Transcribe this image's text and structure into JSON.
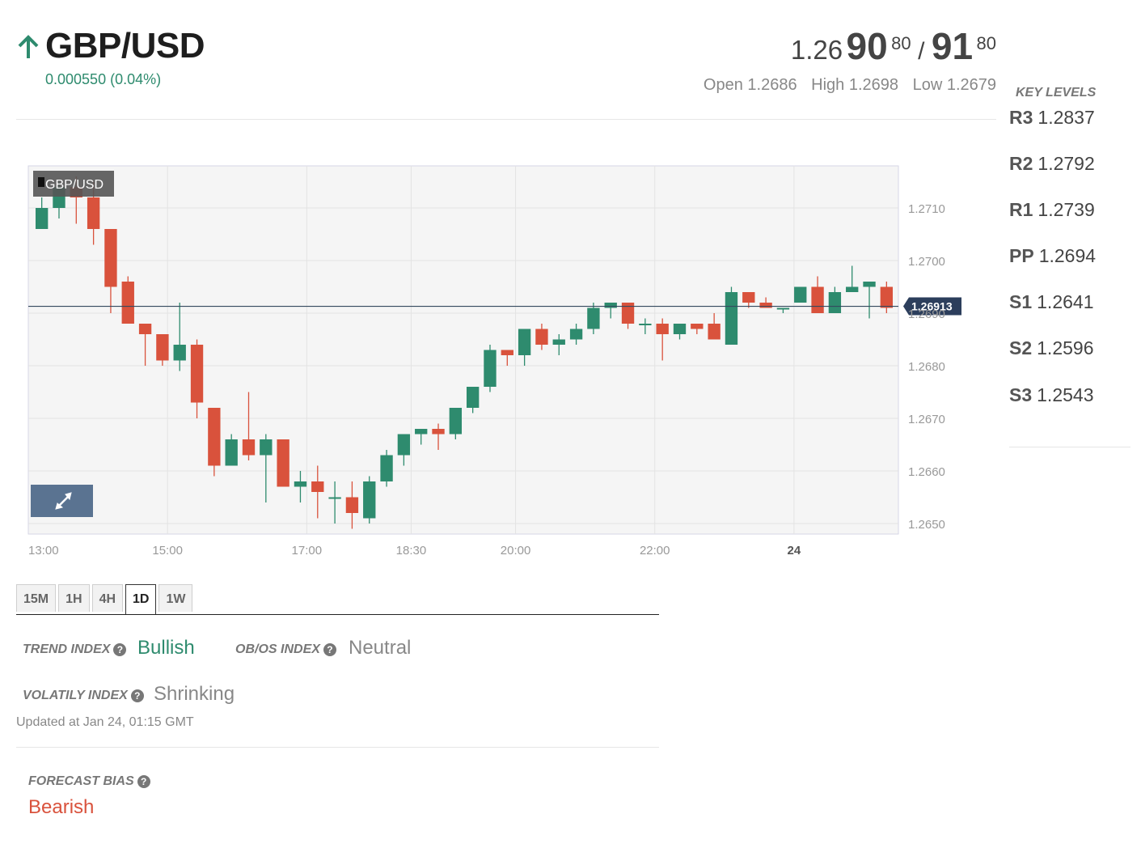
{
  "header": {
    "pair": "GBP/USD",
    "direction_icon": "arrow-up-icon",
    "change": "0.000550 (0.04%)",
    "quote": {
      "bid_base": "1.26",
      "bid_big": "90",
      "bid_pip": "80",
      "slash": "/",
      "ask_big": "91",
      "ask_pip": "80"
    },
    "open": "Open 1.2686",
    "high": "High 1.2698",
    "low": "Low 1.2679"
  },
  "key_levels": {
    "title": "KEY LEVELS",
    "items": [
      {
        "name": "R3",
        "value": "1.2837"
      },
      {
        "name": "R2",
        "value": "1.2792"
      },
      {
        "name": "R1",
        "value": "1.2739"
      },
      {
        "name": "PP",
        "value": "1.2694"
      },
      {
        "name": "S1",
        "value": "1.2641"
      },
      {
        "name": "S2",
        "value": "1.2596"
      },
      {
        "name": "S3",
        "value": "1.2543"
      }
    ]
  },
  "chart_data": {
    "type": "candlestick",
    "title": "GBP/USD",
    "current_price": 1.26913,
    "current_price_label": "1.26913",
    "ylim": [
      1.2648,
      1.2718
    ],
    "y_ticks": [
      "1.2710",
      "1.2700",
      "1.2690",
      "1.2680",
      "1.2670",
      "1.2660",
      "1.2650"
    ],
    "x_ticks": [
      "13:00",
      "15:00",
      "17:00",
      "18:30",
      "20:00",
      "22:00",
      "24"
    ],
    "up_color": "#2e8b6e",
    "down_color": "#d9523c",
    "candles": [
      {
        "o": 1.2706,
        "h": 1.2712,
        "l": 1.2706,
        "c": 1.271
      },
      {
        "o": 1.271,
        "h": 1.2715,
        "l": 1.2708,
        "c": 1.2714
      },
      {
        "o": 1.2714,
        "h": 1.2716,
        "l": 1.2707,
        "c": 1.2712
      },
      {
        "o": 1.2712,
        "h": 1.2715,
        "l": 1.2703,
        "c": 1.2706
      },
      {
        "o": 1.2706,
        "h": 1.2706,
        "l": 1.269,
        "c": 1.2695
      },
      {
        "o": 1.2696,
        "h": 1.2697,
        "l": 1.2688,
        "c": 1.2688
      },
      {
        "o": 1.2688,
        "h": 1.2688,
        "l": 1.268,
        "c": 1.2686
      },
      {
        "o": 1.2686,
        "h": 1.2686,
        "l": 1.268,
        "c": 1.2681
      },
      {
        "o": 1.2681,
        "h": 1.2692,
        "l": 1.2679,
        "c": 1.2684
      },
      {
        "o": 1.2684,
        "h": 1.2685,
        "l": 1.267,
        "c": 1.2673
      },
      {
        "o": 1.2672,
        "h": 1.2672,
        "l": 1.2659,
        "c": 1.2661
      },
      {
        "o": 1.2661,
        "h": 1.2667,
        "l": 1.2661,
        "c": 1.2666
      },
      {
        "o": 1.2666,
        "h": 1.2675,
        "l": 1.2662,
        "c": 1.2663
      },
      {
        "o": 1.2663,
        "h": 1.2667,
        "l": 1.2654,
        "c": 1.2666
      },
      {
        "o": 1.2666,
        "h": 1.2666,
        "l": 1.2657,
        "c": 1.2657
      },
      {
        "o": 1.2657,
        "h": 1.266,
        "l": 1.2654,
        "c": 1.2658
      },
      {
        "o": 1.2658,
        "h": 1.2661,
        "l": 1.2651,
        "c": 1.2656
      },
      {
        "o": 1.2655,
        "h": 1.2658,
        "l": 1.265,
        "c": 1.2655
      },
      {
        "o": 1.2655,
        "h": 1.2658,
        "l": 1.2649,
        "c": 1.2652
      },
      {
        "o": 1.2651,
        "h": 1.2659,
        "l": 1.265,
        "c": 1.2658
      },
      {
        "o": 1.2658,
        "h": 1.2664,
        "l": 1.2657,
        "c": 1.2663
      },
      {
        "o": 1.2663,
        "h": 1.2667,
        "l": 1.2661,
        "c": 1.2667
      },
      {
        "o": 1.2667,
        "h": 1.2668,
        "l": 1.2665,
        "c": 1.2668
      },
      {
        "o": 1.2668,
        "h": 1.2669,
        "l": 1.2664,
        "c": 1.2667
      },
      {
        "o": 1.2667,
        "h": 1.2672,
        "l": 1.2666,
        "c": 1.2672
      },
      {
        "o": 1.2672,
        "h": 1.2676,
        "l": 1.2671,
        "c": 1.2676
      },
      {
        "o": 1.2676,
        "h": 1.2684,
        "l": 1.2675,
        "c": 1.2683
      },
      {
        "o": 1.2683,
        "h": 1.2683,
        "l": 1.268,
        "c": 1.2682
      },
      {
        "o": 1.2682,
        "h": 1.2687,
        "l": 1.268,
        "c": 1.2687
      },
      {
        "o": 1.2687,
        "h": 1.2688,
        "l": 1.2683,
        "c": 1.2684
      },
      {
        "o": 1.2684,
        "h": 1.2686,
        "l": 1.2682,
        "c": 1.2685
      },
      {
        "o": 1.2685,
        "h": 1.2688,
        "l": 1.2684,
        "c": 1.2687
      },
      {
        "o": 1.2687,
        "h": 1.2692,
        "l": 1.2686,
        "c": 1.2691
      },
      {
        "o": 1.2691,
        "h": 1.2692,
        "l": 1.2689,
        "c": 1.2692
      },
      {
        "o": 1.2692,
        "h": 1.2692,
        "l": 1.2687,
        "c": 1.2688
      },
      {
        "o": 1.2688,
        "h": 1.2689,
        "l": 1.2686,
        "c": 1.2688
      },
      {
        "o": 1.2688,
        "h": 1.2689,
        "l": 1.2681,
        "c": 1.2686
      },
      {
        "o": 1.2686,
        "h": 1.2688,
        "l": 1.2685,
        "c": 1.2688
      },
      {
        "o": 1.2688,
        "h": 1.2688,
        "l": 1.2686,
        "c": 1.2687
      },
      {
        "o": 1.2688,
        "h": 1.269,
        "l": 1.2685,
        "c": 1.2685
      },
      {
        "o": 1.2684,
        "h": 1.2695,
        "l": 1.2684,
        "c": 1.2694
      },
      {
        "o": 1.2694,
        "h": 1.2694,
        "l": 1.2691,
        "c": 1.2692
      },
      {
        "o": 1.2692,
        "h": 1.2693,
        "l": 1.2691,
        "c": 1.2691
      },
      {
        "o": 1.2691,
        "h": 1.2691,
        "l": 1.269,
        "c": 1.2691
      },
      {
        "o": 1.2692,
        "h": 1.2695,
        "l": 1.2692,
        "c": 1.2695
      },
      {
        "o": 1.2695,
        "h": 1.2697,
        "l": 1.269,
        "c": 1.269
      },
      {
        "o": 1.269,
        "h": 1.2695,
        "l": 1.269,
        "c": 1.2694
      },
      {
        "o": 1.2694,
        "h": 1.2699,
        "l": 1.2694,
        "c": 1.2695
      },
      {
        "o": 1.2695,
        "h": 1.2696,
        "l": 1.2689,
        "c": 1.2696
      },
      {
        "o": 1.2695,
        "h": 1.2696,
        "l": 1.269,
        "c": 1.2691
      }
    ]
  },
  "expand_icon": "expand-arrows-icon",
  "timeframes": [
    {
      "label": "15M",
      "active": false
    },
    {
      "label": "1H",
      "active": false
    },
    {
      "label": "4H",
      "active": false
    },
    {
      "label": "1D",
      "active": true
    },
    {
      "label": "1W",
      "active": false
    }
  ],
  "indices": {
    "trend_label": "TREND INDEX",
    "trend_value": "Bullish",
    "obos_label": "OB/OS INDEX",
    "obos_value": "Neutral",
    "volatility_label": "VOLATILY INDEX",
    "volatility_value": "Shrinking",
    "updated": "Updated at Jan 24, 01:15 GMT",
    "forecast_label": "FORECAST BIAS",
    "forecast_value": "Bearish"
  },
  "help_icon": "question-icon"
}
